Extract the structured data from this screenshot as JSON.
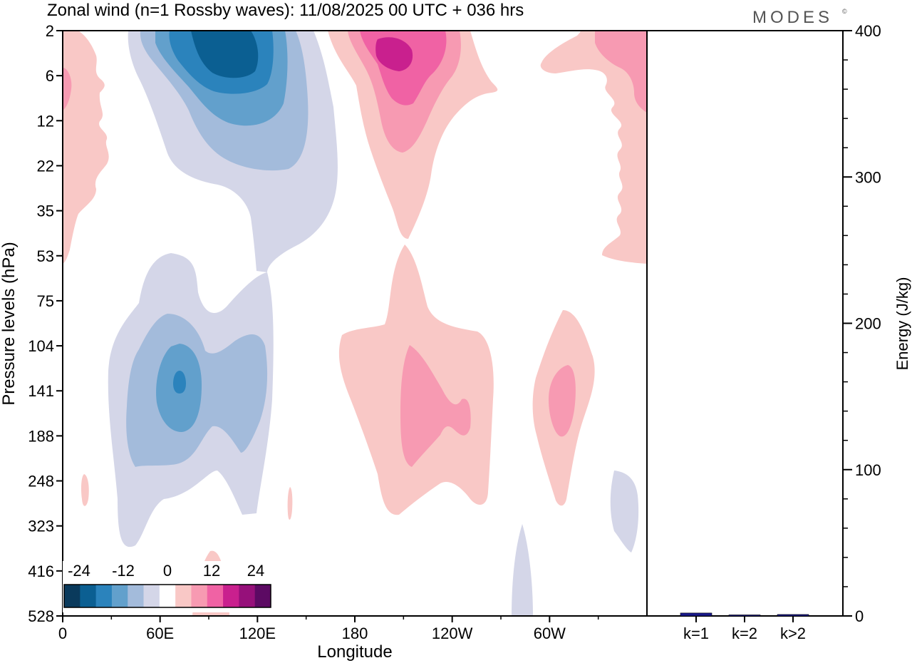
{
  "header": {
    "title": "Zonal wind (n=1 Rossby waves):  11/08/2025  00 UTC  + 036 hrs",
    "brand": "MODES",
    "brand_mark": "©"
  },
  "chart_data": [
    {
      "type": "heatmap",
      "title": "Zonal wind (n=1 Rossby waves):  11/08/2025  00 UTC  + 036 hrs",
      "xlabel": "Longitude",
      "ylabel": "Pressure levels (hPa)",
      "x_ticks": [
        "0",
        "60E",
        "120E",
        "180",
        "120W",
        "60W"
      ],
      "x_tick_degrees": [
        0,
        60,
        120,
        180,
        240,
        300
      ],
      "xlim": [
        0,
        360
      ],
      "y_ticks": [
        "2",
        "6",
        "12",
        "22",
        "35",
        "53",
        "75",
        "104",
        "141",
        "188",
        "248",
        "323",
        "416",
        "528"
      ],
      "y_order": "top-to-bottom",
      "colorbar": {
        "tick_labels": [
          "-24",
          "-12",
          "0",
          "12",
          "24"
        ],
        "levels": [
          -28,
          -24,
          -20,
          -16,
          -12,
          -8,
          -4,
          4,
          8,
          12,
          16,
          20,
          24,
          28
        ],
        "colors": [
          "#0a3a5c",
          "#0b5f92",
          "#2b83bc",
          "#62a0cc",
          "#a3bbdb",
          "#d4d6e8",
          "#ffffff",
          "#f9c8c6",
          "#f79ab2",
          "#f062a4",
          "#c9208e",
          "#96107a",
          "#5c0a63"
        ],
        "placement": "bottom-left"
      },
      "features": [
        {
          "kind": "negative",
          "longitude_deg": 100,
          "level_hPa": 2,
          "min_ms": -24
        },
        {
          "kind": "negative",
          "longitude_deg": 70,
          "level_hPa": 141,
          "min_ms": -20
        },
        {
          "kind": "positive",
          "longitude_deg": 200,
          "level_hPa": 2,
          "max_ms": 20
        },
        {
          "kind": "positive",
          "longitude_deg": 205,
          "level_hPa": 141,
          "max_ms": 8
        },
        {
          "kind": "positive",
          "longitude_deg": 296,
          "level_hPa": 141,
          "max_ms": 8
        },
        {
          "kind": "positive",
          "longitude_deg": 5,
          "level_hPa": 6,
          "max_ms": 8
        }
      ]
    },
    {
      "type": "bar",
      "ylabel": "Energy (J/kg)",
      "categories": [
        "k=1",
        "k=2",
        "k>2"
      ],
      "values": [
        2.0,
        0.4,
        1.0
      ],
      "ylim": [
        0,
        400
      ],
      "y_ticks": [
        "0",
        "100",
        "200",
        "300",
        "400"
      ],
      "y_tick_values": [
        0,
        100,
        200,
        300,
        400
      ],
      "colors": [
        "#1a1a8c",
        "#1a1a8c",
        "#1a1a8c"
      ]
    }
  ]
}
